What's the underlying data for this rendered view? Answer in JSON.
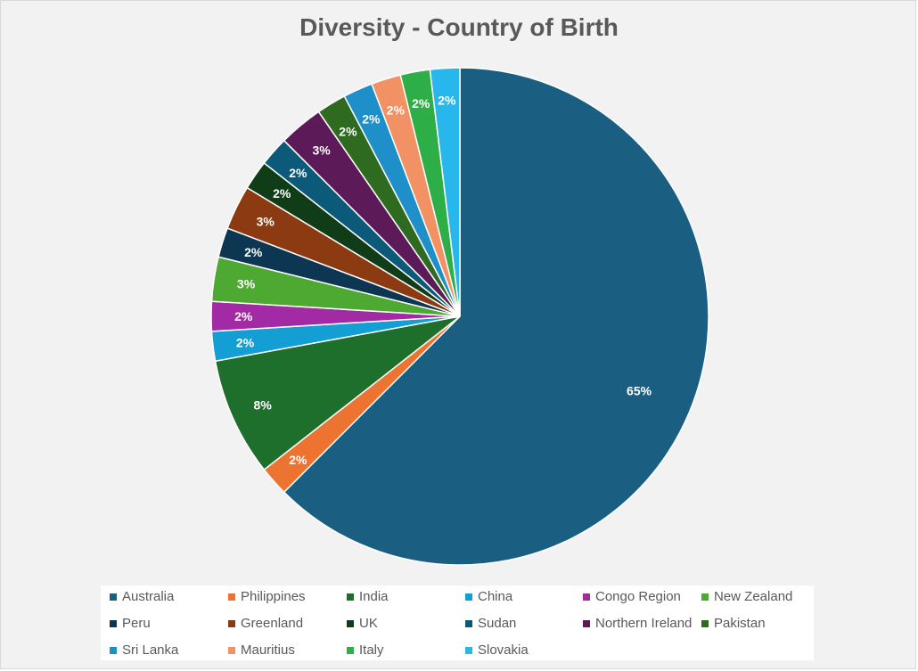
{
  "chart_data": {
    "type": "pie",
    "title": "Diversity - Country of Birth",
    "slices": [
      {
        "name": "Australia",
        "value": 65,
        "label": "65%",
        "color": "#1a5f82"
      },
      {
        "name": "Philippines",
        "value": 2,
        "label": "2%",
        "color": "#ed7331"
      },
      {
        "name": "India",
        "value": 8,
        "label": "8%",
        "color": "#1e6e2c"
      },
      {
        "name": "China",
        "value": 2,
        "label": "2%",
        "color": "#139fd4"
      },
      {
        "name": "Congo Region",
        "value": 2,
        "label": "2%",
        "color": "#a22aa4"
      },
      {
        "name": "New Zealand",
        "value": 3,
        "label": "3%",
        "color": "#4ea932"
      },
      {
        "name": "Peru",
        "value": 2,
        "label": "2%",
        "color": "#0d3652"
      },
      {
        "name": "Greenland",
        "value": 3,
        "label": "3%",
        "color": "#8c3a12"
      },
      {
        "name": "UK",
        "value": 2,
        "label": "2%",
        "color": "#103d17"
      },
      {
        "name": "Sudan",
        "value": 2,
        "label": "2%",
        "color": "#0b5a7a"
      },
      {
        "name": "Northern Ireland",
        "value": 3,
        "label": "3%",
        "color": "#5c1a58"
      },
      {
        "name": "Pakistan",
        "value": 2,
        "label": "2%",
        "color": "#2e6a20"
      },
      {
        "name": "Sri Lanka",
        "value": 2,
        "label": "2%",
        "color": "#1f8fc9"
      },
      {
        "name": "Mauritius",
        "value": 2,
        "label": "2%",
        "color": "#f19164"
      },
      {
        "name": "Italy",
        "value": 2,
        "label": "2%",
        "color": "#2eae47"
      },
      {
        "name": "Slovakia",
        "value": 2,
        "label": "2%",
        "color": "#28b7ec"
      }
    ],
    "legend_position": "bottom"
  }
}
